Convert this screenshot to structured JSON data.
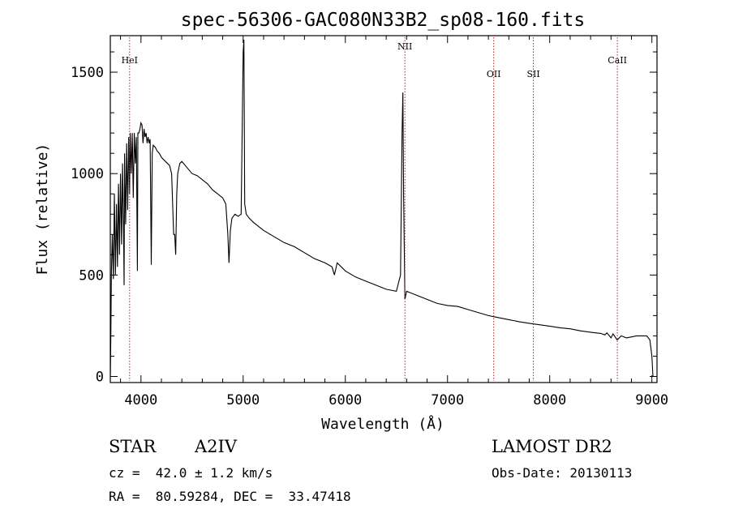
{
  "chart_data": {
    "type": "line",
    "title": "spec-56306-GAC080N33B2_sp08-160.fits",
    "xlabel": "Wavelength (Å)",
    "ylabel": "Flux (relative)",
    "xlim": [
      3700,
      9050
    ],
    "ylim": [
      -30,
      1680
    ],
    "xticks": [
      4000,
      5000,
      6000,
      7000,
      8000,
      9000
    ],
    "yticks": [
      0,
      500,
      1000,
      1500
    ],
    "grid": false,
    "line_color": "#000000",
    "marker_color": "#b22222",
    "lines": [
      {
        "label": "HeI",
        "x": 3889
      },
      {
        "label": "NII",
        "x": 6583
      },
      {
        "label": "OII",
        "x": 7452
      },
      {
        "label": "SII",
        "x": 7840
      },
      {
        "label": "CaII",
        "x": 8662
      }
    ],
    "series": [
      {
        "x": [
          3700,
          3705,
          3710,
          3720,
          3730,
          3740,
          3750,
          3760,
          3770,
          3780,
          3790,
          3800,
          3810,
          3820,
          3830,
          3835,
          3840,
          3850,
          3860,
          3870,
          3880,
          3889,
          3895,
          3905,
          3915,
          3925,
          3935,
          3945,
          3955,
          3965,
          3970,
          3980,
          3990,
          4000,
          4010,
          4020,
          4030,
          4040,
          4050,
          4060,
          4070,
          4080,
          4090,
          4101,
          4110,
          4120,
          4140,
          4160,
          4180,
          4200,
          4220,
          4240,
          4260,
          4280,
          4300,
          4320,
          4330,
          4340,
          4350,
          4360,
          4380,
          4400,
          4450,
          4500,
          4550,
          4600,
          4650,
          4700,
          4750,
          4800,
          4830,
          4850,
          4861,
          4875,
          4890,
          4920,
          4950,
          4980,
          5000,
          5007,
          5015,
          5030,
          5060,
          5100,
          5150,
          5200,
          5300,
          5400,
          5500,
          5600,
          5700,
          5800,
          5870,
          5893,
          5920,
          6000,
          6100,
          6200,
          6300,
          6400,
          6500,
          6540,
          6555,
          6563,
          6570,
          6583,
          6600,
          6700,
          6800,
          6900,
          7000,
          7100,
          7200,
          7300,
          7400,
          7500,
          7600,
          7700,
          7800,
          7900,
          8000,
          8100,
          8200,
          8300,
          8400,
          8500,
          8540,
          8560,
          8600,
          8620,
          8660,
          8700,
          8750,
          8800,
          8850,
          8900,
          8950,
          8980,
          9000,
          9010
        ],
        "y": [
          0,
          180,
          500,
          700,
          480,
          900,
          500,
          850,
          540,
          950,
          600,
          1000,
          650,
          1050,
          700,
          450,
          1100,
          750,
          1150,
          820,
          1180,
          900,
          1200,
          1000,
          1200,
          880,
          1200,
          1050,
          1180,
          520,
          1200,
          1200,
          1220,
          1250,
          1240,
          1150,
          1220,
          1180,
          1200,
          1150,
          1180,
          1150,
          1170,
          550,
          1100,
          1140,
          1130,
          1110,
          1100,
          1080,
          1070,
          1060,
          1050,
          1040,
          1000,
          700,
          700,
          600,
          900,
          1000,
          1050,
          1060,
          1030,
          1000,
          990,
          970,
          950,
          920,
          900,
          880,
          850,
          700,
          560,
          720,
          780,
          800,
          790,
          800,
          1600,
          1660,
          850,
          800,
          780,
          760,
          740,
          720,
          690,
          660,
          640,
          610,
          580,
          560,
          540,
          500,
          560,
          520,
          490,
          470,
          450,
          430,
          420,
          500,
          1200,
          1400,
          900,
          380,
          420,
          400,
          380,
          360,
          350,
          345,
          330,
          315,
          300,
          290,
          280,
          270,
          262,
          255,
          248,
          240,
          235,
          225,
          218,
          212,
          205,
          215,
          190,
          210,
          180,
          200,
          190,
          195,
          200,
          200,
          200,
          180,
          100,
          0
        ]
      }
    ]
  },
  "footer": {
    "object_type": "STAR",
    "spectral_class": "A2IV",
    "redshift": "cz =  42.0 ± 1.2 km/s",
    "coordinates": "RA =  80.59284, DEC =  33.47418",
    "survey": "LAMOST DR2",
    "obs_date": "Obs-Date: 20130113"
  }
}
